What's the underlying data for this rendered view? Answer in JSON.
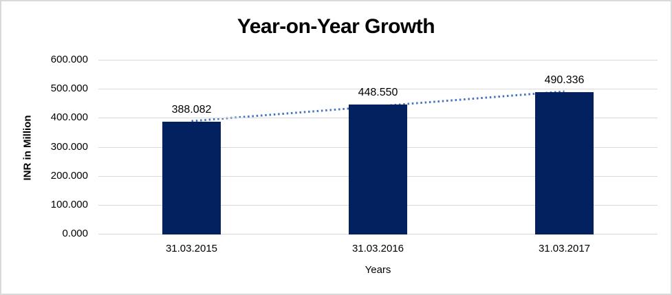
{
  "frame": {
    "background": "#ffffff",
    "border_color": "#d9d9d9"
  },
  "chart_data": {
    "type": "bar",
    "title": "Year-on-Year Growth",
    "categories": [
      "31.03.2015",
      "31.03.2016",
      "31.03.2017"
    ],
    "values": [
      388.082,
      448.55,
      490.336
    ],
    "value_labels": [
      "388.082",
      "448.550",
      "490.336"
    ],
    "xlabel": "Years",
    "ylabel": "INR in Million",
    "ylim": [
      0,
      600
    ],
    "ytick_step": 100,
    "ytick_labels": [
      "0.000",
      "100.000",
      "200.000",
      "300.000",
      "400.000",
      "500.000",
      "600.000"
    ],
    "grid": true,
    "legend": "none",
    "bar_color": "#04215f",
    "gridline_color": "#d9d9d9",
    "label_color": "#000000",
    "trendline": {
      "type": "linear",
      "style": "dotted",
      "color": "#4472c4"
    }
  }
}
